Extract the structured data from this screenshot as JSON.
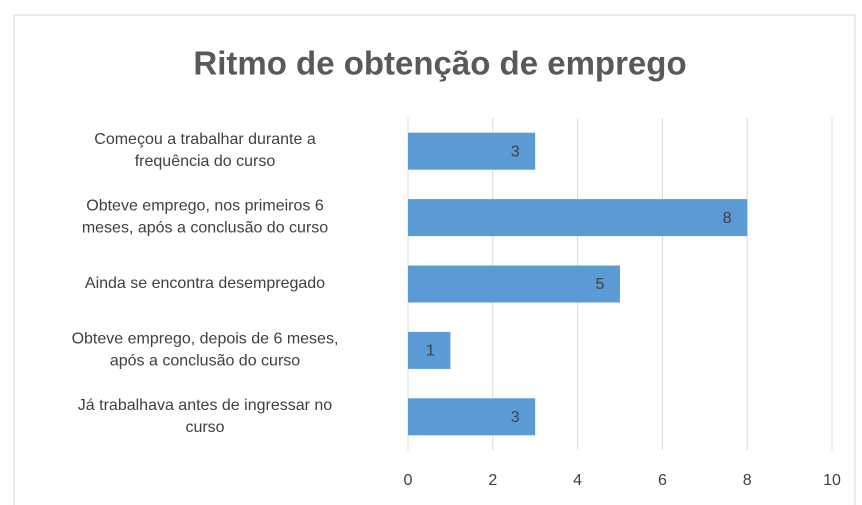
{
  "chart_data": {
    "type": "bar",
    "orientation": "horizontal",
    "title": "Ritmo de obtenção de emprego",
    "categories": [
      "Começou a trabalhar durante a\nfrequência do curso",
      "Obteve emprego, nos primeiros 6\nmeses, após a conclusão do curso",
      "Ainda se encontra desempregado",
      "Obteve emprego, depois de 6 meses,\napós a conclusão do curso",
      "Já trabalhava antes de ingressar no\ncurso"
    ],
    "values": [
      3,
      8,
      5,
      1,
      3
    ],
    "color": "#5b9bd5",
    "xlim": [
      0,
      10
    ],
    "xticks": [
      0,
      2,
      4,
      6,
      8,
      10
    ],
    "grid": true
  }
}
